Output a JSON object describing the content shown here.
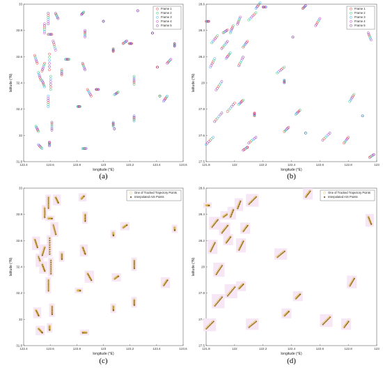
{
  "colors": {
    "frame1": "#ff3333",
    "frame2": "#22cc66",
    "frame3": "#33aaff",
    "frame4": "#cc33cc",
    "frame5": "#7a3a9a",
    "tracked": "#e3c85a",
    "ais": "#7a4a1a",
    "highlight": "#f6e6f6"
  },
  "chart_data": [
    {
      "id": "a",
      "type": "scatter",
      "caption": "(a)",
      "xlabel": "longitude (°E)",
      "ylabel": "latitude (°N)",
      "xlim": [
        122.4,
        123.7
      ],
      "ylim": [
        31.8,
        33.0
      ],
      "xticks": [
        "122.4",
        "122.6",
        "122.8",
        "123",
        "123.2",
        "123.4",
        "123.6"
      ],
      "yticks": [
        "31.8",
        "32",
        "32.2",
        "32.4",
        "32.6",
        "32.8",
        "33"
      ],
      "legend": [
        "Frame 1",
        "Frame 2",
        "Frame 3",
        "Frame 4",
        "Frame 5"
      ],
      "legend_position": "top-right",
      "tracks": [
        [
          122.49,
          32.61,
          0.02,
          -0.06
        ],
        [
          122.52,
          32.48,
          0.02,
          -0.06
        ],
        [
          122.55,
          32.42,
          0.02,
          -0.05
        ],
        [
          122.57,
          32.85,
          0.0,
          -0.07
        ],
        [
          122.6,
          32.93,
          0.0,
          -0.08
        ],
        [
          122.61,
          32.62,
          0.0,
          -0.12
        ],
        [
          122.62,
          32.45,
          0.0,
          -0.1
        ],
        [
          122.6,
          32.3,
          0.0,
          -0.08
        ],
        [
          122.64,
          32.72,
          0.02,
          -0.07
        ],
        [
          122.66,
          32.93,
          0.02,
          -0.04
        ],
        [
          122.57,
          32.55,
          -0.02,
          -0.06
        ],
        [
          122.5,
          32.07,
          0.02,
          -0.04
        ],
        [
          122.52,
          31.93,
          0.03,
          -0.03
        ],
        [
          122.61,
          31.95,
          0.0,
          -0.03
        ],
        [
          122.63,
          32.1,
          0.0,
          -0.06
        ],
        [
          122.71,
          32.5,
          0.0,
          -0.04
        ],
        [
          122.74,
          32.58,
          0.03,
          0.0
        ],
        [
          122.87,
          32.92,
          0.02,
          0.02
        ],
        [
          122.9,
          32.8,
          0.0,
          -0.05
        ],
        [
          122.88,
          32.55,
          0.02,
          -0.05
        ],
        [
          122.92,
          32.35,
          0.03,
          -0.05
        ],
        [
          122.84,
          32.22,
          0.02,
          0.0
        ],
        [
          122.91,
          31.9,
          -0.03,
          0.0
        ],
        [
          122.99,
          32.35,
          0.02,
          0.0
        ],
        [
          123.05,
          32.87,
          0.0,
          0.0
        ],
        [
          123.13,
          32.66,
          0.0,
          -0.02
        ],
        [
          123.14,
          32.31,
          0.03,
          0.02
        ],
        [
          123.13,
          32.1,
          0.0,
          -0.03
        ],
        [
          123.14,
          32.05,
          0.0,
          0.0
        ],
        [
          123.21,
          32.7,
          0.03,
          0.02
        ],
        [
          123.26,
          32.7,
          0.02,
          0.0
        ],
        [
          123.3,
          32.45,
          0.0,
          -0.06
        ],
        [
          123.3,
          32.15,
          0.0,
          -0.04
        ],
        [
          123.33,
          32.95,
          0.0,
          0.0
        ],
        [
          123.45,
          32.78,
          0.0,
          0.0
        ],
        [
          123.49,
          32.52,
          0.0,
          0.0
        ],
        [
          123.51,
          32.3,
          0.0,
          0.0
        ],
        [
          123.54,
          32.26,
          0.03,
          0.04
        ],
        [
          123.57,
          32.55,
          0.03,
          0.03
        ],
        [
          123.63,
          32.7,
          0.0,
          -0.02
        ],
        [
          122.6,
          32.77,
          0.03,
          0.0
        ]
      ],
      "points": []
    },
    {
      "id": "b",
      "type": "scatter",
      "caption": "(b)",
      "xlabel": "longitude (°E)",
      "ylabel": "latitude (°N)",
      "xlim": [
        121.8,
        123.0
      ],
      "ylim": [
        27.5,
        28.6
      ],
      "xticks": [
        "121.8",
        "122",
        "122.2",
        "122.4",
        "122.6",
        "122.8",
        "123"
      ],
      "yticks": [
        "27.5",
        "27.6",
        "27.8",
        "28",
        "28.2",
        "28.4",
        "28.6"
      ],
      "legend": [
        "Frame 1",
        "Frame 2",
        "Frame 3",
        "Frame 4",
        "Frame 5"
      ],
      "legend_position": "top-right",
      "tracks": [
        [
          121.8,
          28.48,
          0.02,
          0.0
        ],
        [
          121.84,
          28.33,
          0.04,
          0.05
        ],
        [
          121.83,
          28.16,
          0.03,
          0.06
        ],
        [
          121.87,
          28.0,
          0.04,
          0.06
        ],
        [
          121.91,
          28.29,
          0.04,
          0.05
        ],
        [
          121.92,
          28.4,
          0.03,
          0.02
        ],
        [
          121.97,
          28.4,
          0.02,
          0.05
        ],
        [
          121.94,
          28.22,
          0.03,
          0.04
        ],
        [
          122.02,
          28.46,
          0.02,
          0.05
        ],
        [
          122.03,
          28.17,
          0.03,
          0.06
        ],
        [
          122.06,
          28.3,
          0.03,
          0.04
        ],
        [
          122.1,
          28.49,
          0.05,
          0.05
        ],
        [
          122.15,
          28.57,
          0.03,
          0.04
        ],
        [
          122.2,
          28.58,
          0.02,
          0.0
        ],
        [
          121.86,
          27.78,
          0.05,
          0.06
        ],
        [
          121.95,
          27.85,
          0.05,
          0.06
        ],
        [
          122.03,
          27.9,
          0.03,
          0.03
        ],
        [
          121.8,
          27.62,
          0.05,
          0.05
        ],
        [
          122.06,
          27.58,
          0.03,
          0.02
        ],
        [
          122.1,
          27.63,
          0.05,
          0.04
        ],
        [
          122.14,
          27.82,
          0.0,
          0.02
        ],
        [
          122.3,
          28.12,
          0.05,
          0.04
        ],
        [
          122.35,
          28.05,
          0.0,
          0.02
        ],
        [
          122.41,
          28.37,
          0.0,
          0.0
        ],
        [
          122.48,
          28.57,
          0.02,
          0.02
        ],
        [
          122.35,
          27.71,
          0.03,
          0.03
        ],
        [
          122.43,
          27.83,
          0.03,
          0.03
        ],
        [
          122.5,
          27.7,
          0.0,
          0.0
        ],
        [
          122.57,
          28.45,
          0.03,
          0.05
        ],
        [
          122.62,
          27.65,
          0.05,
          0.05
        ],
        [
          122.77,
          27.63,
          0.03,
          0.04
        ],
        [
          122.81,
          27.92,
          0.03,
          0.05
        ],
        [
          122.9,
          27.82,
          0.0,
          0.0
        ],
        [
          122.94,
          28.4,
          0.02,
          -0.05
        ],
        [
          122.95,
          27.53,
          0.03,
          0.02
        ],
        [
          122.09,
          27.6,
          0.0,
          0.0
        ]
      ],
      "points": []
    },
    {
      "id": "c",
      "type": "scatter",
      "caption": "(c)",
      "xlabel": "longitude (°E)",
      "ylabel": "latitude (°N)",
      "xlim": [
        122.4,
        123.7
      ],
      "ylim": [
        31.8,
        33.0
      ],
      "xticks": [
        "122.4",
        "122.6",
        "122.8",
        "123",
        "123.2",
        "123.4",
        "123.6"
      ],
      "yticks": [
        "31.8",
        "32",
        "32.2",
        "32.4",
        "32.6",
        "32.8",
        "33"
      ],
      "legend": [
        "One of Tracked Trajectory Points",
        "Interpolated AIS Points"
      ],
      "legend_position": "top-right",
      "tracks": [
        [
          122.49,
          32.61,
          0.02,
          -0.06
        ],
        [
          122.52,
          32.48,
          0.02,
          -0.06
        ],
        [
          122.55,
          32.42,
          0.02,
          -0.05
        ],
        [
          122.57,
          32.85,
          0.0,
          -0.07
        ],
        [
          122.6,
          32.93,
          0.0,
          -0.08
        ],
        [
          122.61,
          32.62,
          0.0,
          -0.12
        ],
        [
          122.62,
          32.45,
          0.0,
          -0.1
        ],
        [
          122.6,
          32.3,
          0.0,
          -0.08
        ],
        [
          122.64,
          32.72,
          0.02,
          -0.07
        ],
        [
          122.66,
          32.93,
          0.02,
          -0.04
        ],
        [
          122.57,
          32.55,
          -0.02,
          -0.06
        ],
        [
          122.5,
          32.07,
          0.02,
          -0.04
        ],
        [
          122.52,
          31.93,
          0.03,
          -0.03
        ],
        [
          122.61,
          31.95,
          0.0,
          -0.03
        ],
        [
          122.63,
          32.1,
          0.0,
          -0.06
        ],
        [
          122.71,
          32.5,
          0.0,
          -0.04
        ],
        [
          122.87,
          32.92,
          0.02,
          0.02
        ],
        [
          122.9,
          32.8,
          0.0,
          -0.05
        ],
        [
          122.88,
          32.55,
          0.02,
          -0.05
        ],
        [
          122.92,
          32.35,
          0.03,
          -0.05
        ],
        [
          122.84,
          32.22,
          0.02,
          0.0
        ],
        [
          122.91,
          31.9,
          -0.03,
          0.0
        ],
        [
          123.13,
          32.66,
          0.0,
          -0.02
        ],
        [
          123.14,
          32.31,
          0.03,
          0.02
        ],
        [
          123.13,
          32.1,
          0.0,
          -0.03
        ],
        [
          123.21,
          32.7,
          0.03,
          0.02
        ],
        [
          123.3,
          32.45,
          0.0,
          -0.06
        ],
        [
          123.3,
          32.15,
          0.0,
          -0.04
        ],
        [
          123.54,
          32.26,
          0.03,
          0.04
        ],
        [
          123.63,
          32.7,
          0.0,
          -0.02
        ],
        [
          122.6,
          32.77,
          0.03,
          0.0
        ]
      ],
      "points": []
    },
    {
      "id": "d",
      "type": "scatter",
      "caption": "(d)",
      "xlabel": "longitude (°E)",
      "ylabel": "latitude (°N)",
      "xlim": [
        121.8,
        123.0
      ],
      "ylim": [
        27.5,
        28.6
      ],
      "xticks": [
        "121.8",
        "122",
        "122.2",
        "122.4",
        "122.6",
        "122.8",
        "123"
      ],
      "yticks": [
        "27.5",
        "27.6",
        "27.8",
        "28",
        "28.2",
        "28.4",
        "28.6"
      ],
      "legend": [
        "One of Tracked Trajectory Points",
        "Interpolated AIS Points"
      ],
      "legend_position": "top-right",
      "tracks": [
        [
          121.8,
          28.48,
          0.02,
          0.0
        ],
        [
          121.84,
          28.33,
          0.04,
          0.05
        ],
        [
          121.83,
          28.16,
          0.03,
          0.06
        ],
        [
          121.87,
          28.0,
          0.04,
          0.06
        ],
        [
          121.91,
          28.29,
          0.04,
          0.05
        ],
        [
          121.92,
          28.4,
          0.03,
          0.02
        ],
        [
          121.97,
          28.4,
          0.02,
          0.05
        ],
        [
          121.94,
          28.22,
          0.03,
          0.04
        ],
        [
          122.02,
          28.46,
          0.02,
          0.05
        ],
        [
          122.03,
          28.17,
          0.03,
          0.06
        ],
        [
          122.06,
          28.3,
          0.03,
          0.04
        ],
        [
          122.1,
          28.49,
          0.05,
          0.05
        ],
        [
          121.86,
          27.78,
          0.05,
          0.06
        ],
        [
          121.95,
          27.85,
          0.05,
          0.06
        ],
        [
          122.03,
          27.9,
          0.03,
          0.03
        ],
        [
          121.8,
          27.62,
          0.05,
          0.05
        ],
        [
          122.1,
          27.63,
          0.05,
          0.04
        ],
        [
          122.3,
          28.12,
          0.05,
          0.04
        ],
        [
          122.35,
          27.71,
          0.03,
          0.03
        ],
        [
          122.43,
          27.83,
          0.03,
          0.03
        ],
        [
          122.5,
          28.54,
          0.03,
          0.04
        ],
        [
          122.62,
          27.65,
          0.05,
          0.05
        ],
        [
          122.77,
          27.63,
          0.03,
          0.04
        ],
        [
          122.81,
          27.92,
          0.03,
          0.05
        ],
        [
          122.94,
          28.4,
          0.02,
          -0.05
        ]
      ],
      "points": []
    }
  ]
}
